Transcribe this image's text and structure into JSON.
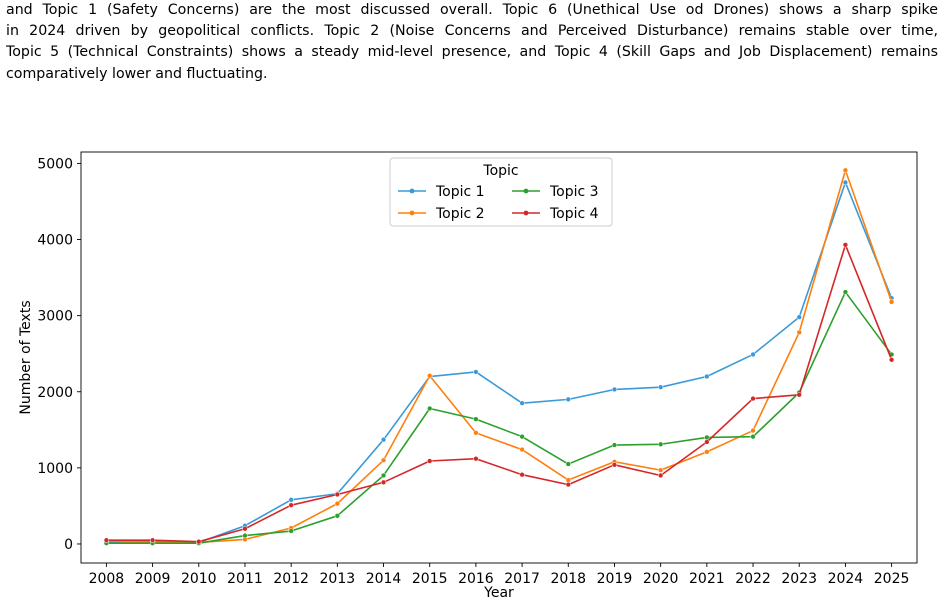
{
  "caption": {
    "lines": [
      "and Topic 1 (Safety Concerns) are the most discussed overall. Topic 6 (Unethical Use od Drones) shows a sharp spike",
      "in 2024 driven by geopolitical conflicts. Topic 2 (Noise Concerns and Perceived Disturbance) remains stable over time,",
      "Topic 5 (Technical Constraints) shows a steady mid-level presence, and Topic 4 (Skill Gaps and Job Displacement) remains",
      "comparatively lower and fluctuating."
    ]
  },
  "chart_data": {
    "type": "line",
    "xlabel": "Year",
    "ylabel": "Number of Texts",
    "ylim": [
      -250,
      5150
    ],
    "yticks": [
      0,
      1000,
      2000,
      3000,
      4000,
      5000
    ],
    "grid": false,
    "legend": {
      "title": "Topic",
      "placement": "upper-center",
      "columns": 2
    },
    "x": [
      2008,
      2009,
      2010,
      2011,
      2012,
      2013,
      2014,
      2015,
      2016,
      2017,
      2018,
      2019,
      2020,
      2021,
      2022,
      2023,
      2024,
      2025
    ],
    "series": [
      {
        "name": "Topic 1",
        "color": "#3a9ad9",
        "values": [
          30,
          30,
          20,
          240,
          580,
          660,
          1370,
          2200,
          2260,
          1850,
          1900,
          2030,
          2060,
          2200,
          2490,
          2980,
          4750,
          3230
        ]
      },
      {
        "name": "Topic 2",
        "color": "#ff7f0e",
        "values": [
          40,
          20,
          20,
          60,
          210,
          530,
          1100,
          2210,
          1460,
          1240,
          840,
          1080,
          970,
          1210,
          1490,
          2780,
          4910,
          3180
        ]
      },
      {
        "name": "Topic 3",
        "color": "#2ca02c",
        "values": [
          10,
          10,
          10,
          110,
          170,
          370,
          900,
          1780,
          1640,
          1410,
          1050,
          1300,
          1310,
          1400,
          1410,
          1990,
          3310,
          2490
        ]
      },
      {
        "name": "Topic 4",
        "color": "#d62728",
        "values": [
          50,
          50,
          30,
          200,
          510,
          650,
          810,
          1090,
          1120,
          910,
          780,
          1040,
          900,
          1340,
          1910,
          1960,
          3930,
          2420
        ]
      }
    ]
  }
}
